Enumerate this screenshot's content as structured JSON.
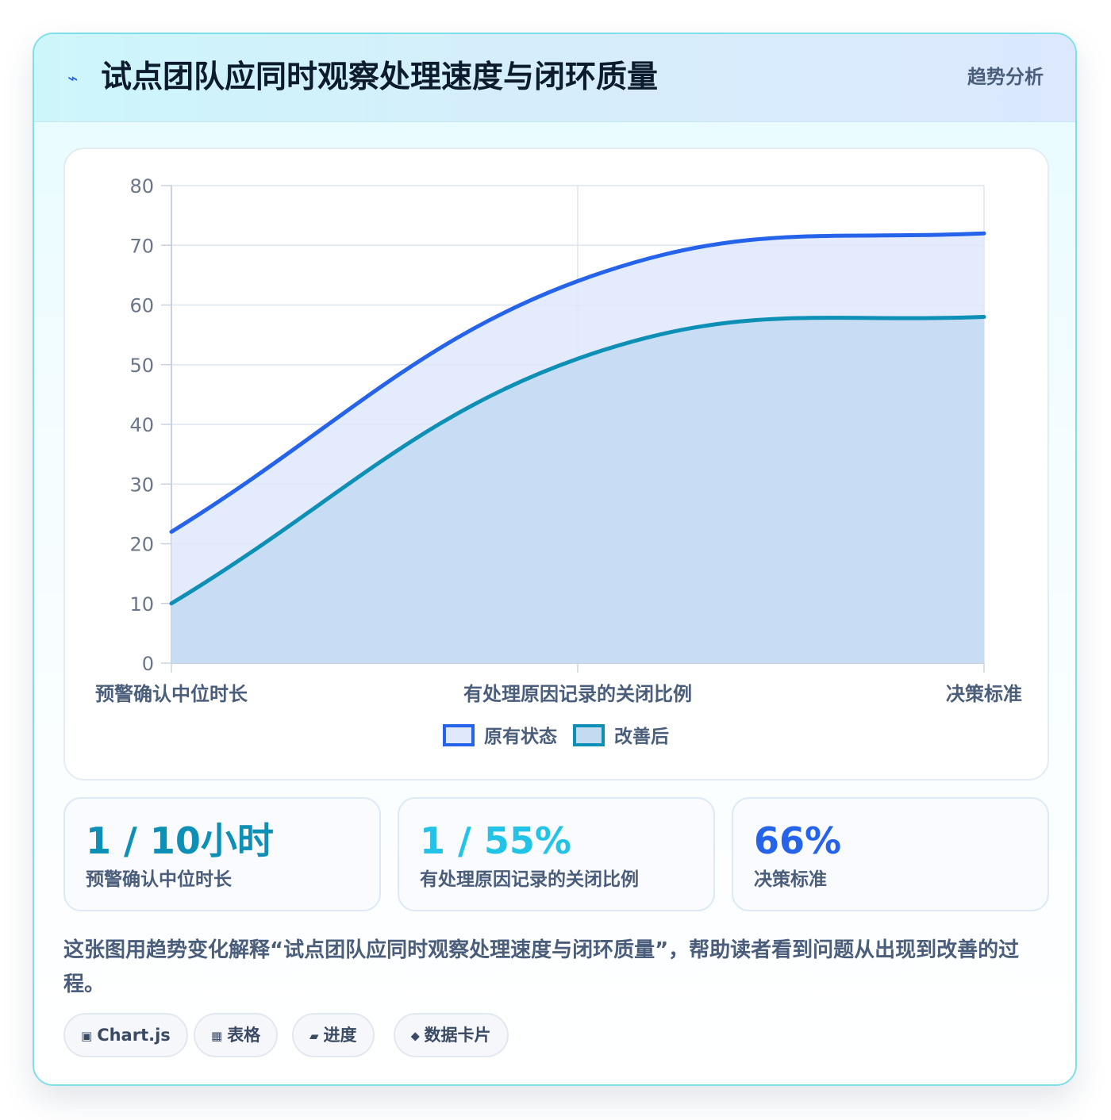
{
  "header": {
    "icon": "lightning-icon",
    "title": "试点团队应同时观察处理速度与闭环质量",
    "tag": "趋势分析"
  },
  "chart_data": {
    "type": "area",
    "categories": [
      "预警确认中位时长",
      "有处理原因记录的关闭比例",
      "决策标准"
    ],
    "series": [
      {
        "name": "原有状态",
        "values": [
          22,
          64,
          72
        ],
        "color": "#2563eb",
        "fill": "#dfe8fb"
      },
      {
        "name": "改善后",
        "values": [
          10,
          51,
          58
        ],
        "color": "#0e8fb5",
        "fill": "#c3dbf1"
      }
    ],
    "ylim": [
      0,
      80
    ],
    "yticks": [
      0,
      10,
      20,
      30,
      40,
      50,
      60,
      70,
      80
    ],
    "grid": true,
    "legend_position": "bottom"
  },
  "stats": [
    {
      "value": "1 / 10小时",
      "label": "预警确认中位时长",
      "color": "#0e8fb5"
    },
    {
      "value": "1 / 55%",
      "label": "有处理原因记录的关闭比例",
      "color": "#22c3e6"
    },
    {
      "value": "66%",
      "label": "决策标准",
      "color": "#2563eb"
    }
  ],
  "description": "这张图用趋势变化解释“试点团队应同时观察处理速度与闭环质量”，帮助读者看到问题从出现到改善的过程。",
  "chips": [
    {
      "icon": "▣",
      "icon_name": "chart-icon",
      "label": "Chart.js"
    },
    {
      "icon": "▦",
      "icon_name": "table-icon",
      "label": "表格"
    },
    {
      "icon": "▰",
      "icon_name": "progress-icon",
      "label": "进度"
    },
    {
      "icon": "⬥",
      "icon_name": "card-icon",
      "label": "数据卡片"
    }
  ]
}
